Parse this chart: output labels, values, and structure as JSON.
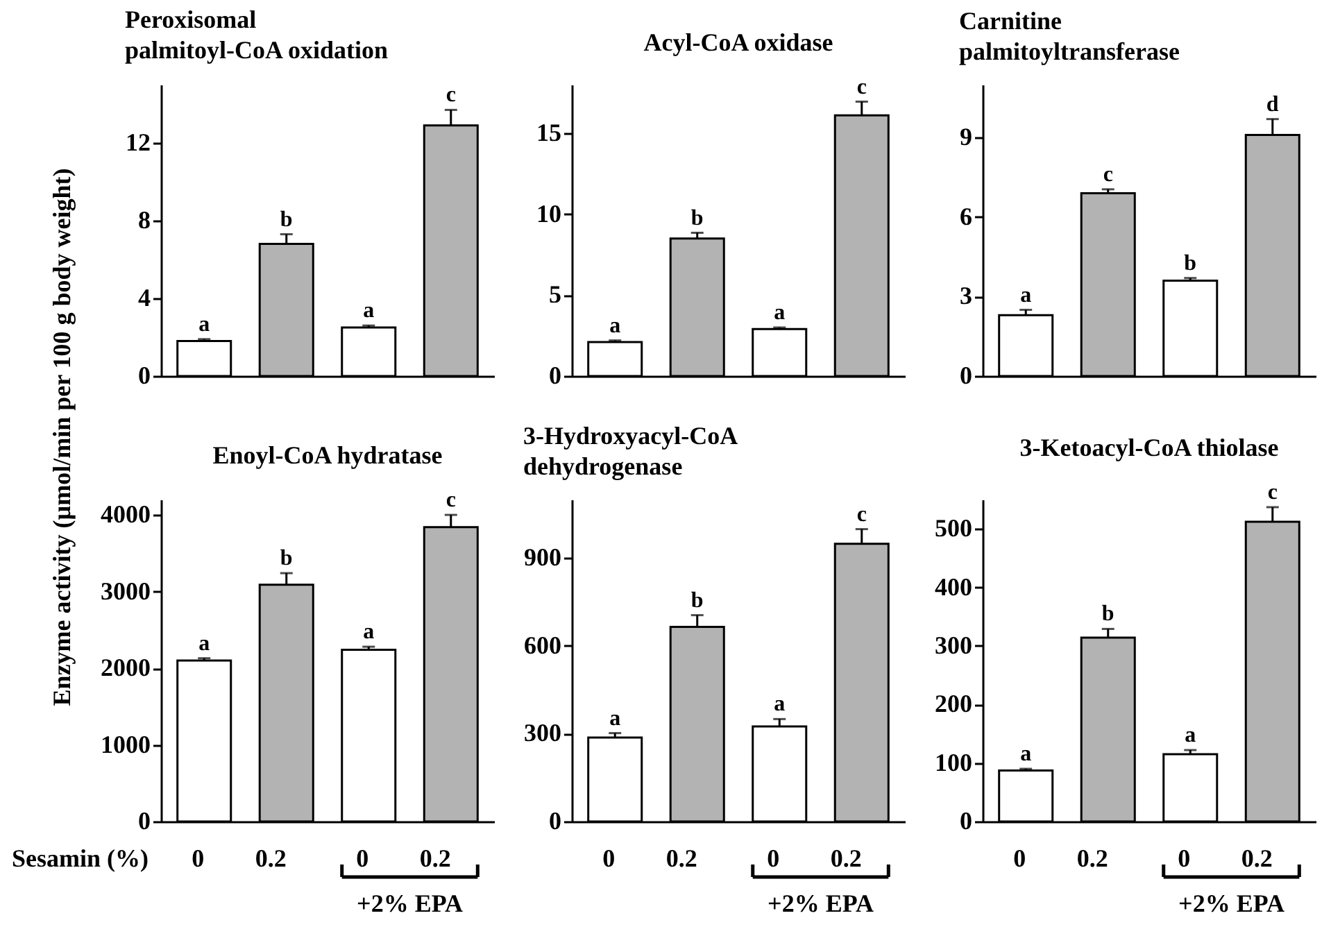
{
  "chart_data": [
    {
      "type": "bar",
      "title": "Peroxisomal palmitoyl-CoA oxidation",
      "ylabel": "Enzyme activity (µmol/min per 100 g body weight)",
      "categories": [
        "0",
        "0.2",
        "0",
        "0.2"
      ],
      "values": [
        1.8,
        6.8,
        2.5,
        12.9
      ],
      "errors": [
        0.1,
        0.5,
        0.1,
        0.8
      ],
      "value_labels": [
        "a",
        "b",
        "a",
        "c"
      ],
      "colors": [
        "#ffffff",
        "#b3b3b3",
        "#ffffff",
        "#b3b3b3"
      ],
      "ylim": [
        0,
        15
      ],
      "yticks": [
        0,
        4,
        8,
        12
      ],
      "tick_labels": "y"
    },
    {
      "type": "bar",
      "title": "Acyl-CoA oxidase",
      "categories": [
        "0",
        "0.2",
        "0",
        "0.2"
      ],
      "values": [
        2.1,
        8.5,
        2.9,
        16.1
      ],
      "errors": [
        0.1,
        0.35,
        0.1,
        0.85
      ],
      "value_labels": [
        "a",
        "b",
        "a",
        "c"
      ],
      "colors": [
        "#ffffff",
        "#b3b3b3",
        "#ffffff",
        "#b3b3b3"
      ],
      "ylim": [
        0,
        18
      ],
      "yticks": [
        0,
        5,
        10,
        15
      ],
      "tick_labels": "y"
    },
    {
      "type": "bar",
      "title": "Carnitine palmitoyltransferase",
      "categories": [
        "0",
        "0.2",
        "0",
        "0.2"
      ],
      "values": [
        2.3,
        6.9,
        3.6,
        9.1
      ],
      "errors": [
        0.2,
        0.15,
        0.1,
        0.6
      ],
      "value_labels": [
        "a",
        "c",
        "b",
        "d"
      ],
      "colors": [
        "#ffffff",
        "#b3b3b3",
        "#ffffff",
        "#b3b3b3"
      ],
      "ylim": [
        0,
        11
      ],
      "yticks": [
        0,
        3,
        6,
        9
      ],
      "tick_labels": "y"
    },
    {
      "type": "bar",
      "title": "Enoyl-CoA hydratase",
      "xlabel": "Sesamin (%)",
      "annotations": [
        "+2% EPA"
      ],
      "categories": [
        "0",
        "0.2",
        "0",
        "0.2"
      ],
      "values": [
        2100,
        3090,
        2240,
        3840
      ],
      "errors": [
        30,
        150,
        40,
        160
      ],
      "value_labels": [
        "a",
        "b",
        "a",
        "c"
      ],
      "colors": [
        "#ffffff",
        "#b3b3b3",
        "#ffffff",
        "#b3b3b3"
      ],
      "ylim": [
        0,
        4200
      ],
      "yticks": [
        0,
        1000,
        2000,
        3000,
        4000
      ]
    },
    {
      "type": "bar",
      "title": "3-Hydroxyacyl-CoA dehydrogenase",
      "annotations": [
        "+2% EPA"
      ],
      "categories": [
        "0",
        "0.2",
        "0",
        "0.2"
      ],
      "values": [
        287,
        665,
        325,
        949
      ],
      "errors": [
        15,
        40,
        25,
        50
      ],
      "value_labels": [
        "a",
        "b",
        "a",
        "c"
      ],
      "colors": [
        "#ffffff",
        "#b3b3b3",
        "#ffffff",
        "#b3b3b3"
      ],
      "ylim": [
        0,
        1100
      ],
      "yticks": [
        0,
        300,
        600,
        900
      ]
    },
    {
      "type": "bar",
      "title": "3-Ketoacyl-CoA thiolase",
      "annotations": [
        "+2% EPA"
      ],
      "categories": [
        "0",
        "0.2",
        "0",
        "0.2"
      ],
      "values": [
        87,
        314,
        115,
        512
      ],
      "errors": [
        3,
        15,
        7,
        25
      ],
      "value_labels": [
        "a",
        "b",
        "a",
        "c"
      ],
      "colors": [
        "#ffffff",
        "#b3b3b3",
        "#ffffff",
        "#b3b3b3"
      ],
      "ylim": [
        0,
        550
      ],
      "yticks": [
        0,
        100,
        200,
        300,
        400,
        500
      ]
    }
  ]
}
